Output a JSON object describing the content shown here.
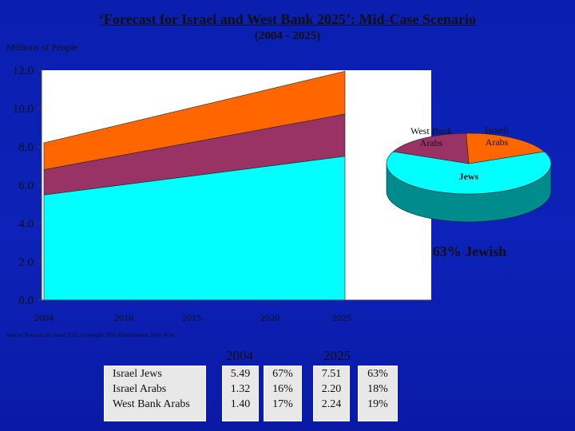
{
  "title": "‘Forecast for Israel and West Bank 2025’:  Mid-Case Scenario",
  "subtitle": "(2004 - 2025)",
  "source": "Source: Forecast for Israel 2025, Copyright 2005 Zimmermann, Seid, Wise",
  "colors": {
    "background": "#0c22b8",
    "israel_jews": "#00ffff",
    "israel_arabs": "#993366",
    "west_bank_arabs": "#ff6600",
    "plot_bg": "#ffffff"
  },
  "chart_data": [
    {
      "type": "area",
      "stacked": true,
      "ylabel": "Millions of People",
      "xlabel": "",
      "x": [
        2004,
        2025
      ],
      "x_ticks": [
        "2004",
        "2010",
        "2015",
        "2020",
        "2025"
      ],
      "ylim": [
        0,
        12
      ],
      "y_ticks": [
        "0.0",
        "2.0",
        "4.0",
        "6.0",
        "8.0",
        "10.0",
        "12.0"
      ],
      "grid": false,
      "series": [
        {
          "name": "Israel Jews",
          "values": [
            5.49,
            7.51
          ]
        },
        {
          "name": "Israel Arabs",
          "values": [
            1.32,
            2.2
          ]
        },
        {
          "name": "West Bank Arabs",
          "values": [
            1.4,
            2.24
          ]
        }
      ]
    },
    {
      "type": "pie",
      "style": "3d",
      "year": "2025",
      "slices": [
        {
          "label": "Jews",
          "value": 63
        },
        {
          "label": "Israeli Arabs",
          "value": 18
        },
        {
          "label": "West Bank Arabs",
          "value": 19
        }
      ],
      "callout": "63% Jewish"
    },
    {
      "type": "table",
      "columns": [
        "2004",
        "2025"
      ],
      "rows": [
        {
          "label": "Israel Jews",
          "v2004": "5.49",
          "p2004": "67%",
          "v2025": "7.51",
          "p2025": "63%"
        },
        {
          "label": "Israel Arabs",
          "v2004": "1.32",
          "p2004": "16%",
          "v2025": "2.20",
          "p2025": "18%"
        },
        {
          "label": "West Bank Arabs",
          "v2004": "1.40",
          "p2004": "17%",
          "v2025": "2.24",
          "p2025": "19%"
        }
      ]
    }
  ]
}
